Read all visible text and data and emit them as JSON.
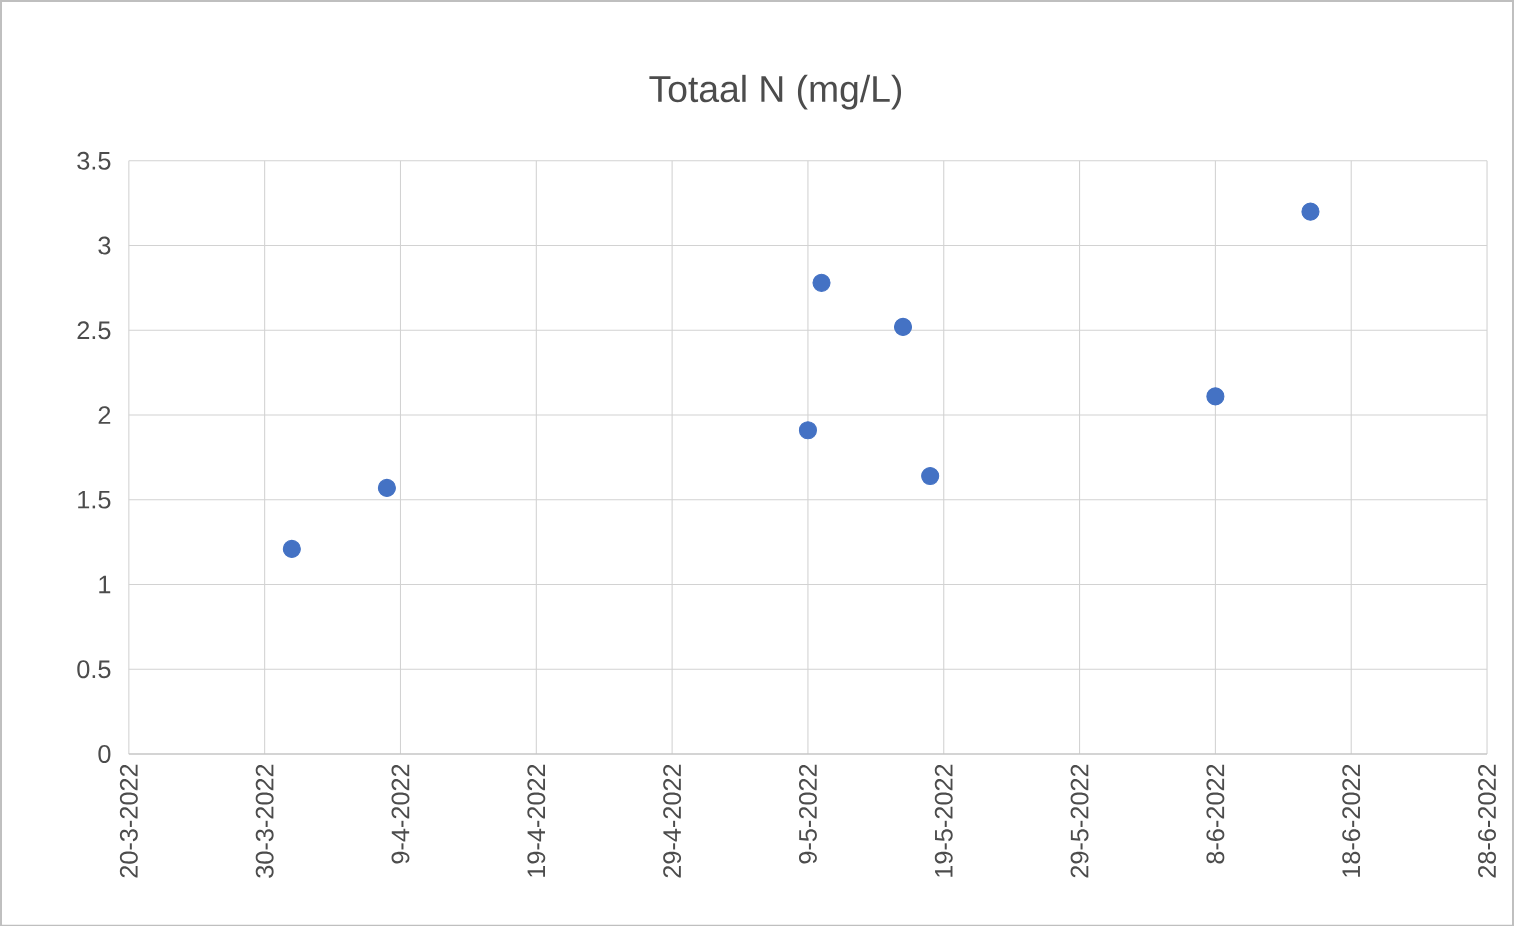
{
  "chart_data": {
    "type": "scatter",
    "title": "Totaal N (mg/L)",
    "x": [
      "2022-04-01",
      "2022-04-08",
      "2022-05-09",
      "2022-05-10",
      "2022-05-16",
      "2022-05-18",
      "2022-06-08",
      "2022-06-15"
    ],
    "series": [
      {
        "color": "#4472c4",
        "values": [
          1.21,
          1.57,
          1.91,
          2.78,
          2.52,
          1.64,
          2.11,
          3.2
        ]
      }
    ],
    "xlim": [
      "2022-03-20",
      "2022-06-28"
    ],
    "xticks": [
      {
        "value": "2022-03-20",
        "label": "20-3-2022"
      },
      {
        "value": "2022-03-30",
        "label": "30-3-2022"
      },
      {
        "value": "2022-04-09",
        "label": "9-4-2022"
      },
      {
        "value": "2022-04-19",
        "label": "19-4-2022"
      },
      {
        "value": "2022-04-29",
        "label": "29-4-2022"
      },
      {
        "value": "2022-05-09",
        "label": "9-5-2022"
      },
      {
        "value": "2022-05-19",
        "label": "19-5-2022"
      },
      {
        "value": "2022-05-29",
        "label": "29-5-2022"
      },
      {
        "value": "2022-06-08",
        "label": "8-6-2022"
      },
      {
        "value": "2022-06-18",
        "label": "18-6-2022"
      },
      {
        "value": "2022-06-28",
        "label": "28-6-2022"
      }
    ],
    "ylim": [
      0,
      3.5
    ],
    "yticks": [
      0,
      0.5,
      1,
      1.5,
      2,
      2.5,
      3,
      3.5
    ],
    "grid": true,
    "marker": "circle"
  }
}
